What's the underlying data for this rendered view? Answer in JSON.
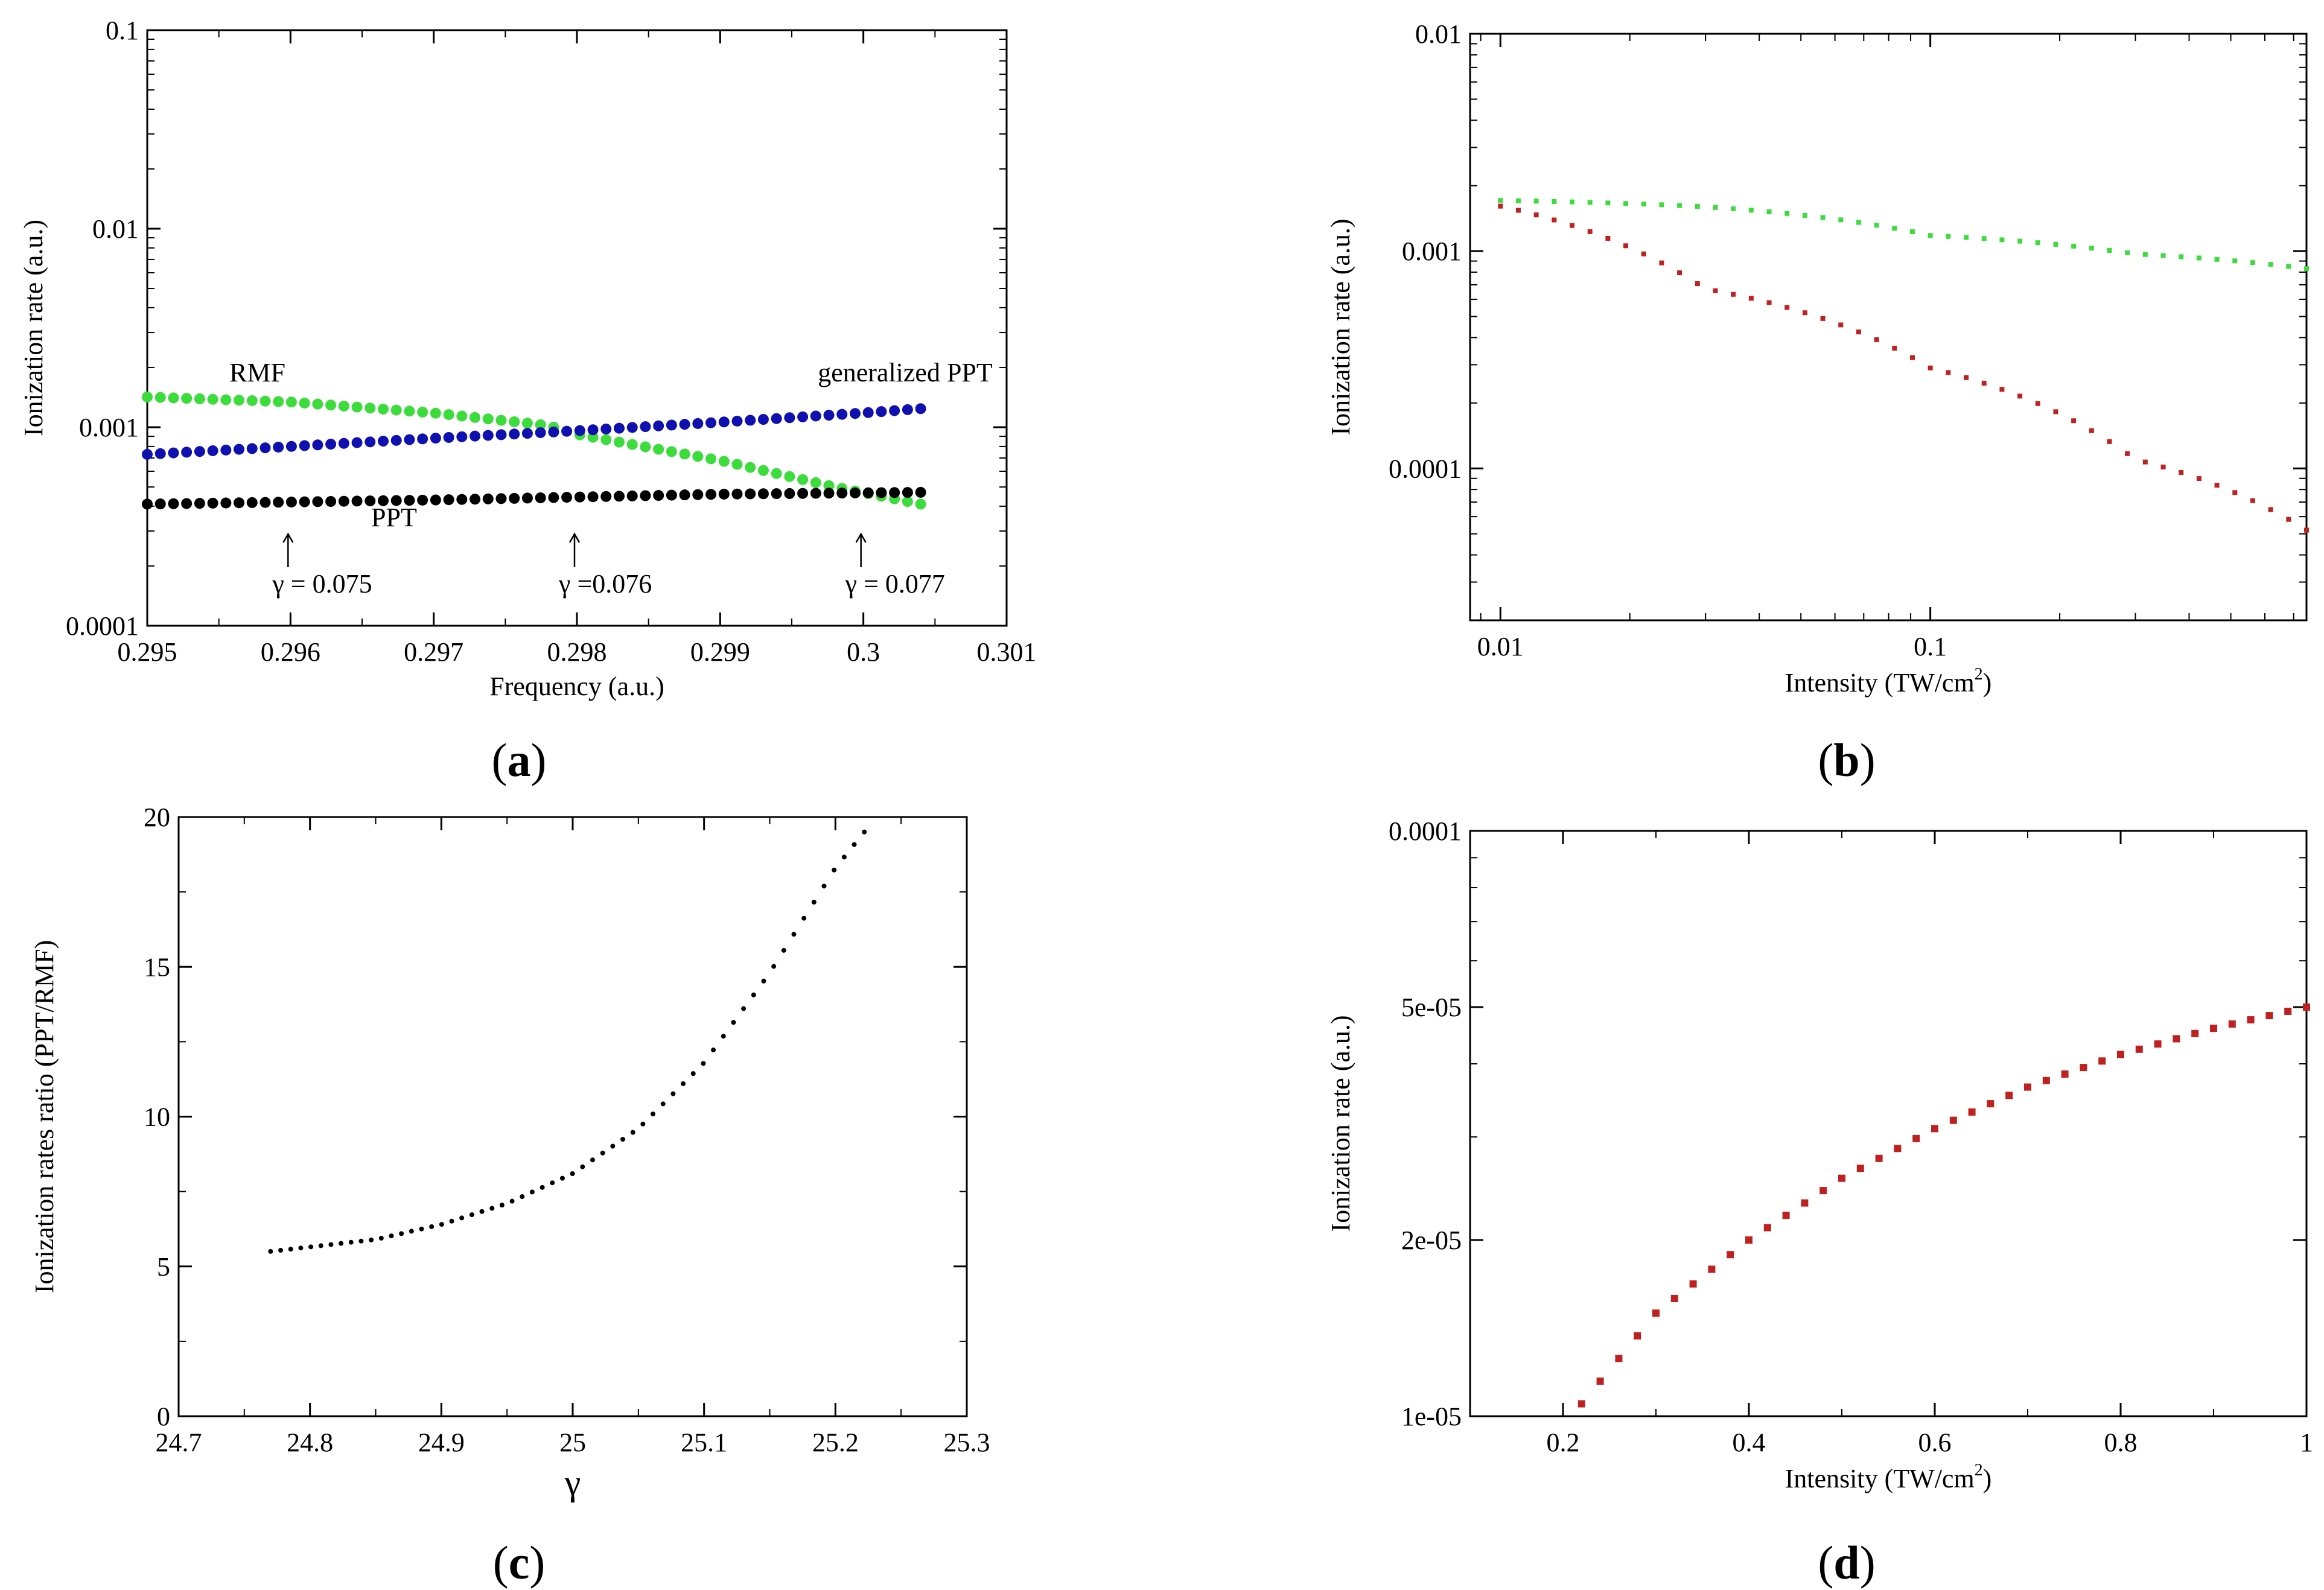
{
  "figure": {
    "captions": [
      "a",
      "b",
      "c",
      "d"
    ]
  },
  "chart_data": [
    {
      "id": "a",
      "type": "scatter",
      "xlabel": "Frequency (a.u.)",
      "ylabel": "Ionization rate (a.u.)",
      "xlim": [
        0.295,
        0.301
      ],
      "ylim": [
        0.0001,
        0.1
      ],
      "yscale": "log",
      "xticks": [
        0.295,
        0.296,
        0.297,
        0.298,
        0.299,
        0.3,
        0.301
      ],
      "xtick_labels": [
        "0.295",
        "0.296",
        "0.297",
        "0.298",
        "0.299",
        "0.3",
        "0.301"
      ],
      "yticks": [
        0.0001,
        0.001,
        0.01,
        0.1
      ],
      "ytick_labels": [
        "0.0001",
        "0.001",
        "0.01",
        "0.1"
      ],
      "series": [
        {
          "name": "RMF",
          "color": "#3ddc3d",
          "x_start": 0.295,
          "x_end": 0.3004,
          "n": 60,
          "y_points": [
            [
              0.295,
              0.00142
            ],
            [
              0.296,
              0.00134
            ],
            [
              0.297,
              0.00118
            ],
            [
              0.2978,
              0.00102
            ],
            [
              0.298,
              0.00092
            ],
            [
              0.299,
              0.00068
            ],
            [
              0.2998,
              0.0005
            ],
            [
              0.3004,
              0.00041
            ]
          ]
        },
        {
          "name": "generalized PPT",
          "color": "#1010b0",
          "x_start": 0.295,
          "x_end": 0.3004,
          "n": 60,
          "y_points": [
            [
              0.295,
              0.00073
            ],
            [
              0.296,
              0.0008
            ],
            [
              0.297,
              0.00088
            ],
            [
              0.298,
              0.00096
            ],
            [
              0.299,
              0.00106
            ],
            [
              0.3,
              0.00118
            ],
            [
              0.3004,
              0.00124
            ]
          ]
        },
        {
          "name": "PPT",
          "color": "#000000",
          "x_start": 0.295,
          "x_end": 0.3004,
          "n": 60,
          "y_points": [
            [
              0.295,
              0.00041
            ],
            [
              0.297,
              0.00043
            ],
            [
              0.299,
              0.00046
            ],
            [
              0.3004,
              0.00047
            ]
          ]
        }
      ],
      "series_labels": [
        "RMF",
        "generalized PPT",
        "PPT"
      ],
      "annotations": [
        {
          "arrow_x": 0.296,
          "label": "γ = 0.075"
        },
        {
          "arrow_x": 0.298,
          "label": "γ =0.076"
        },
        {
          "arrow_x": 0.3,
          "label": "γ = 0.077"
        }
      ]
    },
    {
      "id": "b",
      "type": "scatter",
      "xlabel_main": "Intensity (TW/cm",
      "xlabel_sup": "2",
      "xlabel_end": ")",
      "ylabel": "Ionization rate (a.u.)",
      "xscale": "log",
      "yscale": "log",
      "xlim": [
        0.0085,
        0.75
      ],
      "ylim": [
        2e-05,
        0.01
      ],
      "xticks": [
        0.01,
        0.1
      ],
      "xtick_labels": [
        "0.01",
        "0.1"
      ],
      "yticks": [
        0.0001,
        0.001,
        0.01
      ],
      "ytick_labels": [
        "0.0001",
        "0.001",
        "0.01"
      ],
      "series": [
        {
          "name": "green",
          "color": "#3ddc3d",
          "x_start": 0.01,
          "x_end": 0.75,
          "n": 46,
          "y_points": [
            [
              0.01,
              0.00171
            ],
            [
              0.03,
              0.0016
            ],
            [
              0.1,
              0.00118
            ],
            [
              0.3,
              0.00097
            ],
            [
              0.75,
              0.00083
            ]
          ]
        },
        {
          "name": "red",
          "color": "#c02020",
          "x_start": 0.01,
          "x_end": 0.75,
          "n": 46,
          "y_points": [
            [
              0.01,
              0.00161
            ],
            [
              0.03,
              0.00067
            ],
            [
              0.1,
              0.00029
            ],
            [
              0.3,
              0.00011
            ],
            [
              0.75,
              5.2e-05
            ]
          ]
        }
      ]
    },
    {
      "id": "c",
      "type": "scatter",
      "xlabel": "γ",
      "ylabel": "Ionization rates ratio (PPT/RMF)",
      "xlim": [
        24.7,
        25.3
      ],
      "ylim": [
        0,
        20
      ],
      "xticks": [
        24.7,
        24.8,
        24.9,
        25,
        25.1,
        25.2,
        25.3
      ],
      "xtick_labels": [
        "24.7",
        "24.8",
        "24.9",
        "25",
        "25.1",
        "25.2",
        "25.3"
      ],
      "yticks": [
        0,
        5,
        10,
        15,
        20
      ],
      "ytick_labels": [
        "0",
        "5",
        "10",
        "15",
        "20"
      ],
      "series": [
        {
          "name": "ratio",
          "color": "#000000",
          "x_start": 24.77,
          "x_end": 25.222,
          "n": 60,
          "y_points": [
            [
              24.77,
              5.5
            ],
            [
              24.85,
              5.9
            ],
            [
              24.9,
              6.4
            ],
            [
              24.95,
              7.1
            ],
            [
              25.0,
              8.1
            ],
            [
              25.05,
              9.6
            ],
            [
              25.1,
              11.8
            ],
            [
              25.15,
              14.8
            ],
            [
              25.2,
              18.3
            ],
            [
              25.222,
              19.5
            ]
          ]
        }
      ]
    },
    {
      "id": "d",
      "type": "scatter",
      "xlabel_main": "Intensity (TW/cm",
      "xlabel_sup": "2",
      "xlabel_end": ")",
      "ylabel": "Ionization rate (a.u.)",
      "yscale": "log",
      "xlim": [
        0.1,
        1.0
      ],
      "ylim": [
        1e-05,
        0.0001
      ],
      "xticks": [
        0.2,
        0.4,
        0.6,
        0.8,
        1
      ],
      "xtick_labels": [
        "0.2",
        "0.4",
        "0.6",
        "0.8",
        "1"
      ],
      "yticks": [
        1e-05,
        2e-05,
        5e-05,
        0.0001
      ],
      "ytick_labels": [
        "1e-05",
        "2e-05",
        "5e-05",
        "0.0001"
      ],
      "series": [
        {
          "name": "red",
          "color": "#c02020",
          "x_start": 0.22,
          "x_end": 1.0,
          "n": 40,
          "y_points": [
            [
              0.22,
              1.05e-05
            ],
            [
              0.3,
              1.5e-05
            ],
            [
              0.4,
              2e-05
            ],
            [
              0.5,
              2.55e-05
            ],
            [
              0.6,
              3.1e-05
            ],
            [
              0.7,
              3.65e-05
            ],
            [
              0.8,
              4.15e-05
            ],
            [
              0.9,
              4.6e-05
            ],
            [
              1.0,
              5e-05
            ]
          ]
        }
      ]
    }
  ]
}
